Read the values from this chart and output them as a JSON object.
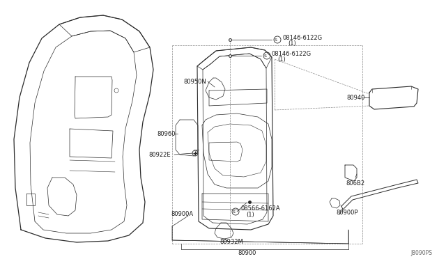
{
  "bg_color": "#ffffff",
  "line_color": "#1a1a1a",
  "fig_width": 6.4,
  "fig_height": 3.72,
  "dpi": 100,
  "diagram_ref": "J8090PS",
  "parts": {
    "screw1_label": "S08146-6122G",
    "screw1_sub": "(1)",
    "screw2_label": "S08146-6122G",
    "screw2_sub": "(1)",
    "screw3_label": "S08566-6162A",
    "screw3_sub": "(1)",
    "p80950N": "80950N",
    "p80940": "80940",
    "p80960": "80960",
    "p80922E": "80922E",
    "p80682": "806B2",
    "p80900A": "80900A",
    "p80932M": "80932M",
    "p80900P": "80900P",
    "p80900": "80900"
  },
  "colors": {
    "line": "#2a2a2a",
    "dashed": "#888888",
    "text": "#1a1a1a"
  }
}
